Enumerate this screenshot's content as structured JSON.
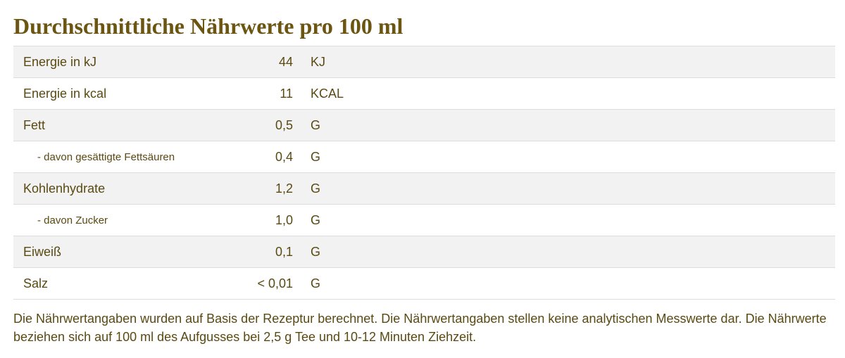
{
  "title": "Durchschnittliche Nährwerte pro 100 ml",
  "rows": [
    {
      "name": "Energie in kJ",
      "value": "44",
      "unit": "KJ"
    },
    {
      "name": "Energie in kcal",
      "value": "11",
      "unit": "KCAL"
    },
    {
      "name": "Fett",
      "value": "0,5",
      "unit": "G"
    },
    {
      "name": "- davon gesättigte Fettsäuren",
      "value": "0,4",
      "unit": "G"
    },
    {
      "name": "Kohlenhydrate",
      "value": "1,2",
      "unit": "G"
    },
    {
      "name": "- davon Zucker",
      "value": "1,0",
      "unit": "G"
    },
    {
      "name": "Eiweiß",
      "value": "0,1",
      "unit": "G"
    },
    {
      "name": "Salz",
      "value": "< 0,01",
      "unit": "G"
    }
  ],
  "note": "Die Nährwertangaben wurden auf Basis der Rezeptur berechnet. Die Nährwertangaben stellen keine analytischen Messwerte dar. Die Nährwerte beziehen sich auf 100 ml des Aufgusses bei 2,5 g Tee und 10-12 Minuten Ziehzeit."
}
